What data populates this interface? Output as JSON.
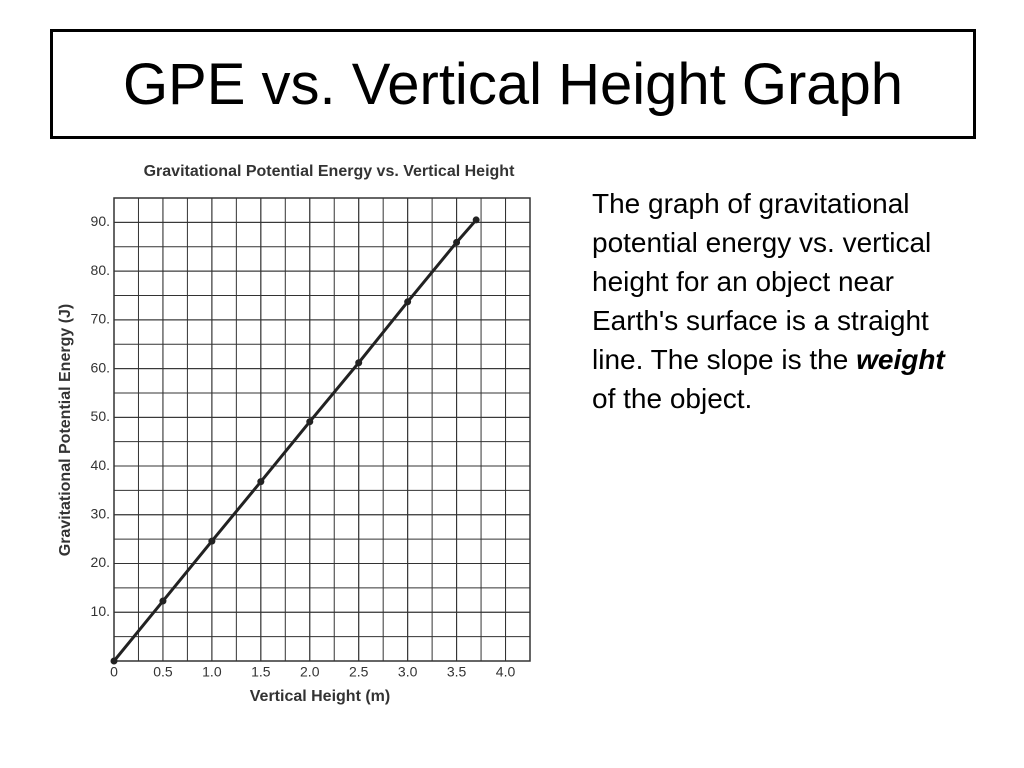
{
  "slide_title": "GPE vs. Vertical Height Graph",
  "body": [
    "The graph of gravitational potential energy vs. vertical height for an object near Earth's surface is a straight line. The slope is the ",
    "weight",
    " of the object."
  ],
  "chart_data": {
    "type": "line",
    "title": "Gravitational Potential Energy vs. Vertical Height",
    "x_label": "Vertical Height (m)",
    "y_label": "Gravitational Potential Energy (J)",
    "x": [
      0,
      0.5,
      1.0,
      1.5,
      2.0,
      2.5,
      3.0,
      3.5,
      3.7
    ],
    "values": [
      0,
      12.3,
      24.6,
      36.8,
      49.1,
      61.2,
      73.7,
      85.9,
      90.5
    ],
    "color": "#222222",
    "xlim": [
      0,
      4.25
    ],
    "ylim": [
      0,
      95
    ],
    "xticks": [
      0,
      0.5,
      {
        "value": 1,
        "label": "1.0"
      },
      1.5,
      {
        "value": 2,
        "label": "2.0"
      },
      2.5,
      {
        "value": 3,
        "label": "3.0"
      },
      3.5,
      {
        "value": 4,
        "label": "4.0"
      }
    ],
    "yticks": [
      {
        "value": 10,
        "label": "10."
      },
      {
        "value": 20,
        "label": "20."
      },
      {
        "value": 30,
        "label": "30."
      },
      {
        "value": 40,
        "label": "40."
      },
      {
        "value": 50,
        "label": "50."
      },
      {
        "value": 60,
        "label": "60."
      },
      {
        "value": 70,
        "label": "70."
      },
      {
        "value": 80,
        "label": "80."
      },
      {
        "value": 90,
        "label": "90."
      }
    ],
    "grid": true
  }
}
